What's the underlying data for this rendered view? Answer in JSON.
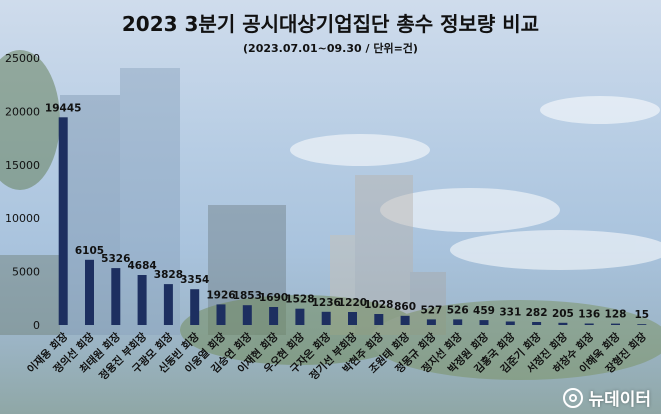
{
  "title": "2023 3분기 공시대상기업집단 총수 정보량 비교",
  "subtitle": "(2023.07.01~09.30 / 단위=건)",
  "watermark": "뉴데이터",
  "colors": {
    "bar": "#1d2f60",
    "text": "#111111"
  },
  "chart_data": {
    "type": "bar",
    "categories": [
      "이재용 회장",
      "정의선 회장",
      "최태원 회장",
      "정용진 부회장",
      "구광모 회장",
      "신동빈 회장",
      "이웅열 회장",
      "김승연 회장",
      "이재현 회장",
      "우오현 회장",
      "구자은 회장",
      "정기선 부회장",
      "박현주 회장",
      "조원태 회장",
      "정몽규 회장",
      "정지선 회장",
      "박정원 회장",
      "김홍국 회장",
      "김준기 회장",
      "서정진 회장",
      "허창수 회장",
      "이해욱 회장",
      "장형진 회장"
    ],
    "values": [
      19445,
      6105,
      5326,
      4684,
      3828,
      3354,
      1926,
      1853,
      1690,
      1528,
      1236,
      1220,
      1028,
      860,
      527,
      526,
      459,
      331,
      282,
      205,
      136,
      128,
      15
    ],
    "data_labels": [
      "19445",
      "6105",
      "5326",
      "4684",
      "3828",
      "3354",
      "1926",
      "1853",
      "1690",
      "1528",
      "1236",
      "1220",
      "1028",
      "860",
      "527",
      "526",
      "459",
      "331",
      "282",
      "205",
      "136",
      "128",
      "15"
    ],
    "yticks": [
      "0",
      "5000",
      "10000",
      "15000",
      "20000",
      "25000"
    ],
    "ylim": [
      0,
      25000
    ],
    "grid": false,
    "legend": "none"
  }
}
